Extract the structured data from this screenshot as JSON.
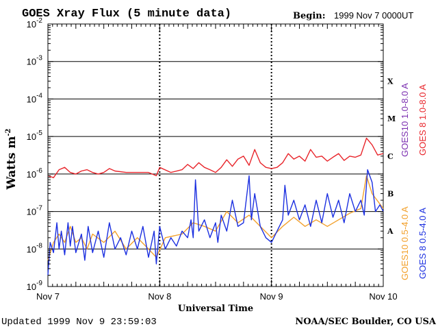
{
  "header": {
    "title": "GOES Xray Flux (5 minute data)",
    "begin_label": "Begin:",
    "begin_value": "1999 Nov 7 0000UT"
  },
  "footer": {
    "updated": "Updated 1999 Nov  9 23:59:03",
    "credit": "NOAA/SEC Boulder, CO USA"
  },
  "chart_data": {
    "type": "line",
    "title": "GOES Xray Flux (5 minute data)",
    "xlabel": "Universal Time",
    "ylabel": "Watts m",
    "ylabel_superscript": "-2",
    "y_scale": "log",
    "ylim": [
      1e-09,
      0.01
    ],
    "y_ticks": [
      {
        "base": "10",
        "exp": "-2"
      },
      {
        "base": "10",
        "exp": "-3"
      },
      {
        "base": "10",
        "exp": "-4"
      },
      {
        "base": "10",
        "exp": "-5"
      },
      {
        "base": "10",
        "exp": "-6"
      },
      {
        "base": "10",
        "exp": "-7"
      },
      {
        "base": "10",
        "exp": "-8"
      },
      {
        "base": "10",
        "exp": "-9"
      }
    ],
    "x_ticks": [
      "Nov 7",
      "Nov 8",
      "Nov 9",
      "Nov 10"
    ],
    "xlim_days": [
      0,
      3
    ],
    "flare_classes": [
      {
        "label": "X",
        "value": 0.0003
      },
      {
        "label": "M",
        "value": 3e-05
      },
      {
        "label": "C",
        "value": 3e-06
      },
      {
        "label": "B",
        "value": 3e-07
      },
      {
        "label": "A",
        "value": 3e-08
      }
    ],
    "grid": "horizontal decades 1e-3 to 1e-8; vertical dotted at day boundaries",
    "right_legend": [
      {
        "name": "GOES10 1.0-8.0 A",
        "color": "#7b2fb0"
      },
      {
        "name": "GOES 8 1.0-8.0 A",
        "color": "#e8242a"
      },
      {
        "name": "GOES10 0.5-4.0 A",
        "color": "#f2a02b"
      },
      {
        "name": "GOES 8 0.5-4.0 A",
        "color": "#1b2fe0"
      }
    ],
    "series": [
      {
        "name": "GOES 8 1.0-8.0 A",
        "color": "#e8242a",
        "points": [
          [
            0.0,
            9e-07
          ],
          [
            0.05,
            8e-07
          ],
          [
            0.1,
            1.3e-06
          ],
          [
            0.15,
            1.5e-06
          ],
          [
            0.2,
            1.1e-06
          ],
          [
            0.25,
            1e-06
          ],
          [
            0.3,
            1.2e-06
          ],
          [
            0.35,
            1.3e-06
          ],
          [
            0.4,
            1.1e-06
          ],
          [
            0.45,
            1e-06
          ],
          [
            0.5,
            1.1e-06
          ],
          [
            0.55,
            1.4e-06
          ],
          [
            0.6,
            1.2e-06
          ],
          [
            0.7,
            1.1e-06
          ],
          [
            0.8,
            1.1e-06
          ],
          [
            0.9,
            1.1e-06
          ],
          [
            0.97,
            9e-07
          ],
          [
            1.0,
            1.5e-06
          ],
          [
            1.1,
            1.1e-06
          ],
          [
            1.2,
            1.3e-06
          ],
          [
            1.25,
            1.8e-06
          ],
          [
            1.3,
            1.4e-06
          ],
          [
            1.35,
            2e-06
          ],
          [
            1.4,
            1.5e-06
          ],
          [
            1.45,
            1.3e-06
          ],
          [
            1.5,
            1.1e-06
          ],
          [
            1.55,
            1.5e-06
          ],
          [
            1.6,
            2.4e-06
          ],
          [
            1.65,
            1.6e-06
          ],
          [
            1.7,
            2.5e-06
          ],
          [
            1.75,
            3e-06
          ],
          [
            1.8,
            1.7e-06
          ],
          [
            1.85,
            4.5e-06
          ],
          [
            1.9,
            2e-06
          ],
          [
            1.95,
            1.5e-06
          ],
          [
            2.0,
            1.4e-06
          ],
          [
            2.05,
            1.5e-06
          ],
          [
            2.1,
            2e-06
          ],
          [
            2.15,
            3.5e-06
          ],
          [
            2.2,
            2.5e-06
          ],
          [
            2.25,
            3e-06
          ],
          [
            2.3,
            2.2e-06
          ],
          [
            2.35,
            4.5e-06
          ],
          [
            2.4,
            2.8e-06
          ],
          [
            2.45,
            3e-06
          ],
          [
            2.5,
            2.2e-06
          ],
          [
            2.55,
            2.8e-06
          ],
          [
            2.6,
            3.5e-06
          ],
          [
            2.65,
            2.3e-06
          ],
          [
            2.7,
            3e-06
          ],
          [
            2.75,
            2.8e-06
          ],
          [
            2.8,
            3.2e-06
          ],
          [
            2.85,
            9e-06
          ],
          [
            2.9,
            6e-06
          ],
          [
            2.95,
            3.2e-06
          ],
          [
            3.0,
            3.5e-06
          ]
        ]
      },
      {
        "name": "GOES10 0.5-4.0 A",
        "color": "#f2a02b",
        "points": [
          [
            0.0,
            5e-09
          ],
          [
            0.05,
            1.5e-08
          ],
          [
            0.1,
            2.5e-08
          ],
          [
            0.15,
            1.5e-08
          ],
          [
            0.2,
            4e-08
          ],
          [
            0.25,
            1.5e-08
          ],
          [
            0.3,
            2e-08
          ],
          [
            0.35,
            1e-08
          ],
          [
            0.4,
            2.5e-08
          ],
          [
            0.5,
            1.5e-08
          ],
          [
            0.6,
            3e-08
          ],
          [
            0.7,
            1e-08
          ],
          [
            0.8,
            2e-08
          ],
          [
            0.9,
            1e-08
          ],
          [
            0.97,
            6e-09
          ],
          [
            1.05,
            2e-08
          ],
          [
            1.2,
            2.5e-08
          ],
          [
            1.3,
            5e-08
          ],
          [
            1.4,
            4e-08
          ],
          [
            1.5,
            3e-08
          ],
          [
            1.6,
            1e-07
          ],
          [
            1.7,
            5e-08
          ],
          [
            1.8,
            8e-08
          ],
          [
            1.9,
            4e-08
          ],
          [
            2.0,
            2e-08
          ],
          [
            2.1,
            4e-08
          ],
          [
            2.2,
            7e-08
          ],
          [
            2.3,
            4e-08
          ],
          [
            2.4,
            6e-08
          ],
          [
            2.5,
            4e-08
          ],
          [
            2.6,
            6e-08
          ],
          [
            2.7,
            9e-08
          ],
          [
            2.8,
            1.2e-07
          ],
          [
            2.85,
            9e-07
          ],
          [
            2.9,
            3e-07
          ],
          [
            3.0,
            1.2e-07
          ]
        ]
      },
      {
        "name": "GOES 8 0.5-4.0 A",
        "color": "#1b2fe0",
        "points": [
          [
            0.0,
            2e-09
          ],
          [
            0.02,
            1.5e-08
          ],
          [
            0.05,
            8e-09
          ],
          [
            0.08,
            5e-08
          ],
          [
            0.1,
            1e-08
          ],
          [
            0.12,
            3e-08
          ],
          [
            0.15,
            7e-09
          ],
          [
            0.18,
            5e-08
          ],
          [
            0.2,
            1.2e-08
          ],
          [
            0.22,
            4e-08
          ],
          [
            0.25,
            8e-09
          ],
          [
            0.3,
            2.5e-08
          ],
          [
            0.33,
            5e-09
          ],
          [
            0.36,
            4e-08
          ],
          [
            0.4,
            8e-09
          ],
          [
            0.45,
            3e-08
          ],
          [
            0.5,
            6e-09
          ],
          [
            0.55,
            5e-08
          ],
          [
            0.6,
            1e-08
          ],
          [
            0.65,
            2e-08
          ],
          [
            0.7,
            7e-09
          ],
          [
            0.75,
            3e-08
          ],
          [
            0.8,
            1e-08
          ],
          [
            0.85,
            4e-08
          ],
          [
            0.9,
            6e-09
          ],
          [
            0.95,
            3e-08
          ],
          [
            0.97,
            4e-09
          ],
          [
            1.0,
            4e-08
          ],
          [
            1.05,
            1e-08
          ],
          [
            1.1,
            2e-08
          ],
          [
            1.15,
            1.2e-08
          ],
          [
            1.2,
            3e-08
          ],
          [
            1.25,
            2e-08
          ],
          [
            1.28,
            6e-08
          ],
          [
            1.3,
            2e-08
          ],
          [
            1.32,
            7e-07
          ],
          [
            1.35,
            3e-08
          ],
          [
            1.4,
            6e-08
          ],
          [
            1.45,
            2e-08
          ],
          [
            1.5,
            5e-08
          ],
          [
            1.52,
            1.5e-08
          ],
          [
            1.55,
            8e-08
          ],
          [
            1.6,
            3e-08
          ],
          [
            1.65,
            2e-07
          ],
          [
            1.7,
            4e-08
          ],
          [
            1.75,
            5e-08
          ],
          [
            1.8,
            9e-07
          ],
          [
            1.82,
            6e-08
          ],
          [
            1.85,
            3e-07
          ],
          [
            1.9,
            4e-08
          ],
          [
            1.95,
            2e-08
          ],
          [
            2.0,
            1.5e-08
          ],
          [
            2.05,
            3e-08
          ],
          [
            2.1,
            6e-08
          ],
          [
            2.12,
            5e-07
          ],
          [
            2.15,
            8e-08
          ],
          [
            2.2,
            2e-07
          ],
          [
            2.25,
            6e-08
          ],
          [
            2.3,
            1.5e-07
          ],
          [
            2.35,
            4e-08
          ],
          [
            2.4,
            2e-07
          ],
          [
            2.45,
            5e-08
          ],
          [
            2.5,
            3e-07
          ],
          [
            2.55,
            7e-08
          ],
          [
            2.6,
            2e-07
          ],
          [
            2.65,
            5e-08
          ],
          [
            2.7,
            3e-07
          ],
          [
            2.75,
            1e-07
          ],
          [
            2.8,
            2e-07
          ],
          [
            2.83,
            8e-08
          ],
          [
            2.86,
            1.3e-06
          ],
          [
            2.9,
            6e-07
          ],
          [
            2.93,
            1e-07
          ],
          [
            2.97,
            1.5e-07
          ],
          [
            3.0,
            1e-07
          ]
        ]
      }
    ]
  }
}
